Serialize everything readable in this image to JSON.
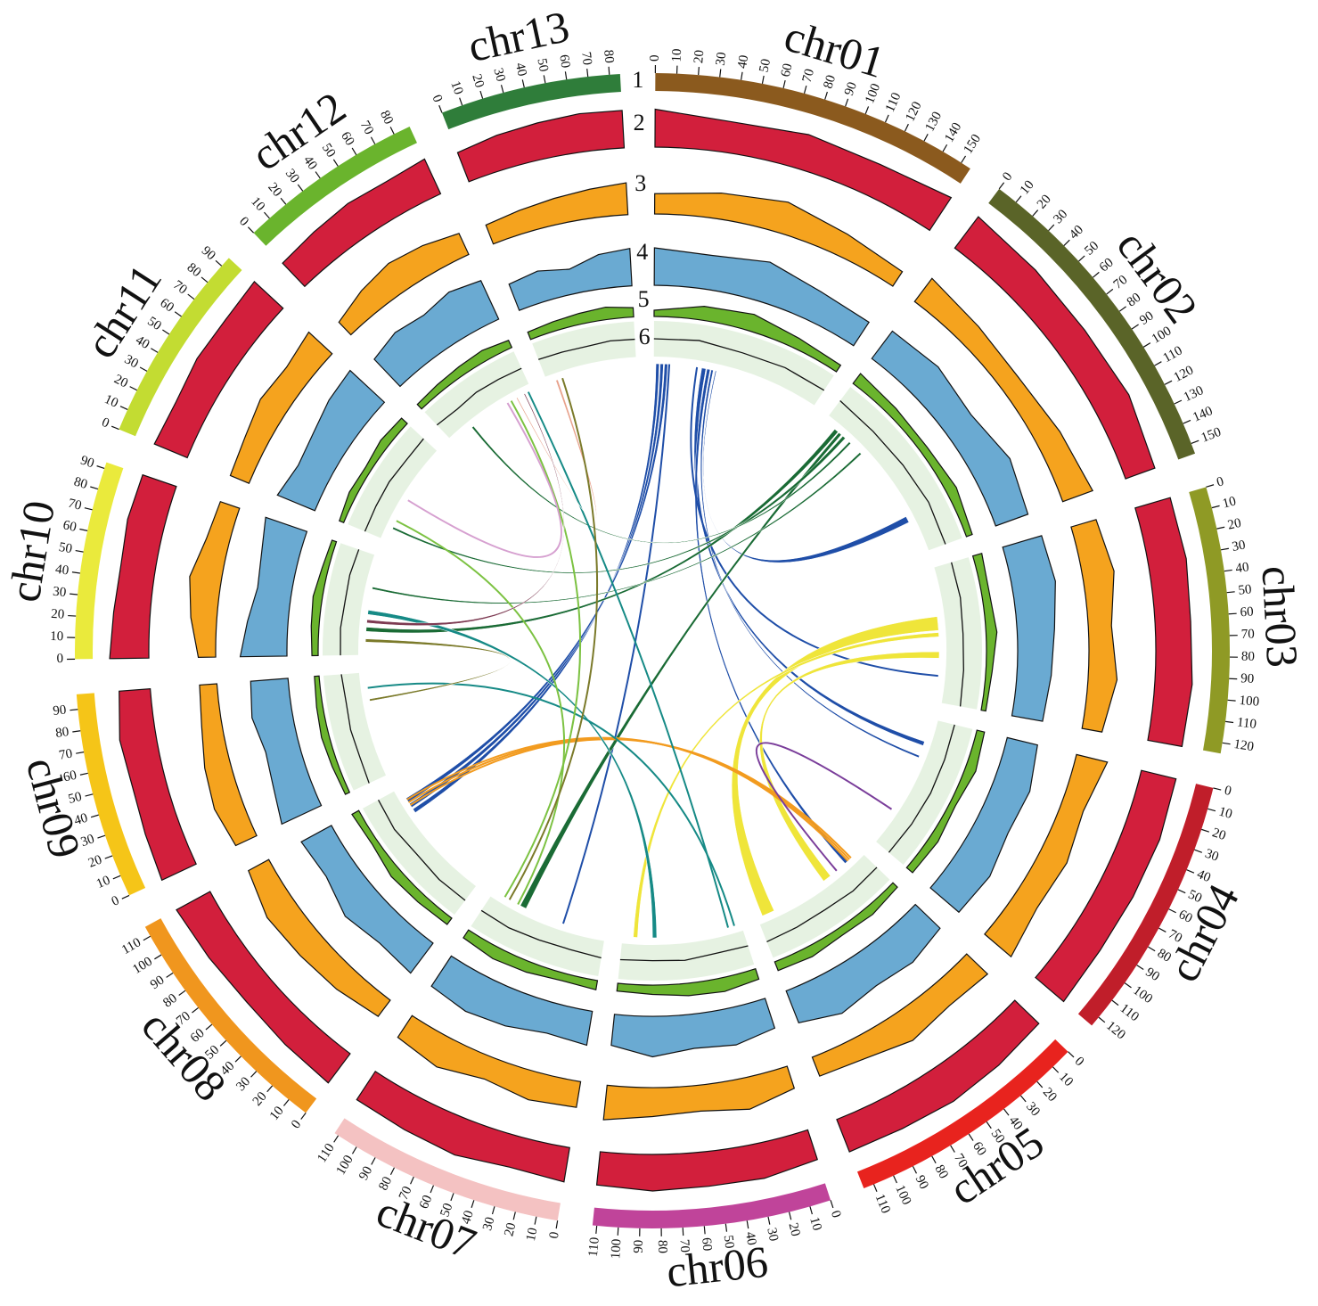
{
  "chart_data": {
    "type": "circos",
    "chromosomes": [
      {
        "name": "chr01",
        "color": "#8b5a1e",
        "length": 155,
        "ticks": [
          0,
          10,
          20,
          30,
          40,
          50,
          60,
          70,
          80,
          90,
          100,
          110,
          120,
          130,
          140,
          150
        ]
      },
      {
        "name": "chr02",
        "color": "#5a6428",
        "length": 155,
        "ticks": [
          0,
          10,
          20,
          30,
          40,
          50,
          60,
          70,
          80,
          90,
          100,
          110,
          120,
          130,
          140,
          150
        ]
      },
      {
        "name": "chr03",
        "color": "#8f9a25",
        "length": 125,
        "ticks": [
          0,
          10,
          20,
          30,
          40,
          50,
          60,
          70,
          80,
          90,
          100,
          110,
          120
        ]
      },
      {
        "name": "chr04",
        "color": "#c01e2a",
        "length": 125,
        "ticks": [
          0,
          10,
          20,
          30,
          40,
          50,
          60,
          70,
          80,
          90,
          100,
          110,
          120
        ]
      },
      {
        "name": "chr05",
        "color": "#e8231e",
        "length": 115,
        "ticks": [
          0,
          10,
          20,
          30,
          40,
          50,
          60,
          70,
          80,
          90,
          100,
          110
        ]
      },
      {
        "name": "chr06",
        "color": "#c0449a",
        "length": 112,
        "ticks": [
          0,
          10,
          20,
          30,
          40,
          50,
          60,
          70,
          80,
          90,
          100,
          110
        ]
      },
      {
        "name": "chr07",
        "color": "#f4c2c2",
        "length": 112,
        "ticks": [
          0,
          10,
          20,
          30,
          40,
          50,
          60,
          70,
          80,
          90,
          100,
          110
        ]
      },
      {
        "name": "chr08",
        "color": "#f0961e",
        "length": 115,
        "ticks": [
          0,
          10,
          20,
          30,
          40,
          50,
          60,
          70,
          80,
          90,
          100,
          110
        ]
      },
      {
        "name": "chr09",
        "color": "#f5c518",
        "length": 97,
        "ticks": [
          0,
          10,
          20,
          30,
          40,
          50,
          60,
          70,
          80,
          90
        ]
      },
      {
        "name": "chr10",
        "color": "#eaea3c",
        "length": 93,
        "ticks": [
          0,
          10,
          20,
          30,
          40,
          50,
          60,
          70,
          80,
          90
        ]
      },
      {
        "name": "chr11",
        "color": "#c3dc32",
        "length": 95,
        "ticks": [
          0,
          10,
          20,
          30,
          40,
          50,
          60,
          70,
          80,
          90
        ]
      },
      {
        "name": "chr12",
        "color": "#6ab42d",
        "length": 88,
        "ticks": [
          0,
          10,
          20,
          30,
          40,
          50,
          60,
          70,
          80
        ]
      },
      {
        "name": "chr13",
        "color": "#2f7d3a",
        "length": 85,
        "ticks": [
          0,
          10,
          20,
          30,
          40,
          50,
          60,
          70,
          80
        ]
      }
    ],
    "track_labels": [
      "1",
      "2",
      "3",
      "4",
      "5",
      "6"
    ],
    "tracks": [
      {
        "style": "area",
        "color": "#d21f3c",
        "ylim": [
          0,
          100
        ],
        "values": [
          [
            85,
            70,
            80,
            75,
            88
          ],
          [
            88,
            82,
            78,
            84,
            70
          ],
          [
            82,
            86,
            80,
            84,
            78
          ],
          [
            80,
            85,
            82,
            79,
            83
          ],
          [
            75,
            82,
            86,
            80,
            78
          ],
          [
            70,
            80,
            78,
            82,
            75
          ],
          [
            78,
            72,
            85,
            80,
            76
          ],
          [
            82,
            78,
            74,
            80,
            86
          ],
          [
            85,
            80,
            76,
            82,
            70
          ],
          [
            88,
            82,
            78,
            84,
            80
          ],
          [
            80,
            76,
            84,
            82,
            88
          ],
          [
            72,
            78,
            84,
            80,
            86
          ],
          [
            70,
            78,
            82,
            86,
            84
          ]
        ]
      },
      {
        "style": "area",
        "color": "#f5a31e",
        "ylim": [
          0,
          100
        ],
        "values": [
          [
            35,
            45,
            55,
            40,
            30
          ],
          [
            50,
            40,
            35,
            45,
            55
          ],
          [
            45,
            55,
            40,
            50,
            35
          ],
          [
            55,
            40,
            50,
            45,
            60
          ],
          [
            50,
            45,
            55,
            40,
            35
          ],
          [
            40,
            55,
            45,
            50,
            60
          ],
          [
            45,
            50,
            40,
            55,
            45
          ],
          [
            35,
            45,
            50,
            55,
            40
          ],
          [
            40,
            50,
            45,
            35,
            30
          ],
          [
            30,
            45,
            55,
            40,
            35
          ],
          [
            35,
            40,
            50,
            45,
            55
          ],
          [
            30,
            45,
            55,
            50,
            40
          ],
          [
            35,
            40,
            45,
            50,
            55
          ]
        ]
      },
      {
        "style": "area",
        "color": "#6aaad2",
        "ylim": [
          0,
          100
        ],
        "values": [
          [
            60,
            55,
            65,
            50,
            45
          ],
          [
            55,
            60,
            50,
            65,
            55
          ],
          [
            65,
            70,
            60,
            55,
            50
          ],
          [
            50,
            60,
            55,
            65,
            60
          ],
          [
            55,
            65,
            60,
            70,
            55
          ],
          [
            50,
            60,
            55,
            65,
            50
          ],
          [
            55,
            50,
            60,
            65,
            58
          ],
          [
            60,
            55,
            65,
            50,
            55
          ],
          [
            70,
            60,
            55,
            65,
            60
          ],
          [
            75,
            65,
            55,
            60,
            70
          ],
          [
            65,
            55,
            60,
            70,
            75
          ],
          [
            60,
            70,
            65,
            75,
            68
          ],
          [
            45,
            50,
            40,
            55,
            60
          ]
        ]
      },
      {
        "style": "area",
        "color": "#6ab42d",
        "ylim": [
          0,
          100
        ],
        "values": [
          [
            20,
            45,
            55,
            35,
            25
          ],
          [
            40,
            30,
            25,
            35,
            20
          ],
          [
            30,
            25,
            35,
            20,
            15
          ],
          [
            25,
            35,
            20,
            30,
            25
          ],
          [
            20,
            30,
            25,
            35,
            30
          ],
          [
            35,
            45,
            40,
            30,
            25
          ],
          [
            30,
            25,
            35,
            40,
            30
          ],
          [
            25,
            30,
            35,
            20,
            25
          ],
          [
            15,
            20,
            25,
            20,
            15
          ],
          [
            20,
            25,
            30,
            20,
            15
          ],
          [
            15,
            25,
            20,
            30,
            25
          ],
          [
            20,
            25,
            30,
            35,
            25
          ],
          [
            25,
            30,
            35,
            40,
            30
          ]
        ]
      },
      {
        "style": "line",
        "color": "#111111",
        "background": "#e6f2e2",
        "ylim": [
          0,
          100
        ],
        "values": [
          [
            50,
            55,
            48,
            52,
            50
          ],
          [
            52,
            48,
            50,
            55,
            50
          ],
          [
            50,
            52,
            48,
            50,
            53
          ],
          [
            48,
            50,
            52,
            50,
            47
          ],
          [
            50,
            53,
            48,
            50,
            52
          ],
          [
            45,
            42,
            48,
            44,
            46
          ],
          [
            48,
            44,
            46,
            50,
            47
          ],
          [
            50,
            52,
            48,
            55,
            50
          ],
          [
            52,
            48,
            50,
            46,
            50
          ],
          [
            50,
            52,
            48,
            50,
            46
          ],
          [
            48,
            50,
            52,
            48,
            50
          ],
          [
            50,
            46,
            52,
            50,
            48
          ],
          [
            52,
            50,
            48,
            52,
            50
          ]
        ]
      }
    ],
    "links": [
      {
        "source": {
          "chr": "chr01",
          "start": 2,
          "end": 5
        },
        "target": {
          "chr": "chr08",
          "start": 88,
          "end": 92
        },
        "color": "#1f4ea8"
      },
      {
        "source": {
          "chr": "chr01",
          "start": 6,
          "end": 9
        },
        "target": {
          "chr": "chr08",
          "start": 94,
          "end": 98
        },
        "color": "#1f4ea8"
      },
      {
        "source": {
          "chr": "chr01",
          "start": 10,
          "end": 13
        },
        "target": {
          "chr": "chr08",
          "start": 100,
          "end": 104
        },
        "color": "#1f4ea8"
      },
      {
        "source": {
          "chr": "chr01",
          "start": 14,
          "end": 15
        },
        "target": {
          "chr": "chr07",
          "start": 40,
          "end": 41
        },
        "color": "#1f4ea8"
      },
      {
        "source": {
          "chr": "chr01",
          "start": 45,
          "end": 49
        },
        "target": {
          "chr": "chr04",
          "start": 22,
          "end": 26
        },
        "color": "#1f4ea8"
      },
      {
        "source": {
          "chr": "chr01",
          "start": 50,
          "end": 53
        },
        "target": {
          "chr": "chr05",
          "start": 15,
          "end": 18
        },
        "color": "#1f4ea8"
      },
      {
        "source": {
          "chr": "chr01",
          "start": 54,
          "end": 56
        },
        "target": {
          "chr": "chr04",
          "start": 36,
          "end": 38
        },
        "color": "#1f4ea8"
      },
      {
        "source": {
          "chr": "chr01",
          "start": 40,
          "end": 41
        },
        "target": {
          "chr": "chr03",
          "start": 100,
          "end": 101
        },
        "color": "#1f4ea8"
      },
      {
        "source": {
          "chr": "chr01",
          "start": 58,
          "end": 59
        },
        "target": {
          "chr": "chr02",
          "start": 118,
          "end": 124
        },
        "color": "#1f4ea8"
      },
      {
        "source": {
          "chr": "chr02",
          "start": 12,
          "end": 16
        },
        "target": {
          "chr": "chr10",
          "start": 22,
          "end": 26
        },
        "color": "#1a6b35"
      },
      {
        "source": {
          "chr": "chr02",
          "start": 17,
          "end": 20
        },
        "target": {
          "chr": "chr07",
          "start": 78,
          "end": 84
        },
        "color": "#1a6b35"
      },
      {
        "source": {
          "chr": "chr02",
          "start": 22,
          "end": 25
        },
        "target": {
          "chr": "chr11",
          "start": 12,
          "end": 14
        },
        "color": "#1a6b35"
      },
      {
        "source": {
          "chr": "chr02",
          "start": 30,
          "end": 32
        },
        "target": {
          "chr": "chr12",
          "start": 22,
          "end": 24
        },
        "color": "#1a6b35"
      },
      {
        "source": {
          "chr": "chr02",
          "start": 44,
          "end": 46
        },
        "target": {
          "chr": "chr10",
          "start": 62,
          "end": 64
        },
        "color": "#1a6b35"
      },
      {
        "source": {
          "chr": "chr03",
          "start": 45,
          "end": 58
        },
        "target": {
          "chr": "chr05",
          "start": 98,
          "end": 110
        },
        "color": "#efe53a"
      },
      {
        "source": {
          "chr": "chr03",
          "start": 60,
          "end": 64
        },
        "target": {
          "chr": "chr06",
          "start": 98,
          "end": 102
        },
        "color": "#efe53a"
      },
      {
        "source": {
          "chr": "chr03",
          "start": 78,
          "end": 84
        },
        "target": {
          "chr": "chr05",
          "start": 36,
          "end": 44
        },
        "color": "#efe53a"
      },
      {
        "source": {
          "chr": "chr08",
          "start": 96,
          "end": 97
        },
        "target": {
          "chr": "chr05",
          "start": 10,
          "end": 11
        },
        "color": "#f29b1f"
      },
      {
        "source": {
          "chr": "chr08",
          "start": 99,
          "end": 100
        },
        "target": {
          "chr": "chr05",
          "start": 12,
          "end": 13
        },
        "color": "#f29b1f"
      },
      {
        "source": {
          "chr": "chr08",
          "start": 102,
          "end": 103
        },
        "target": {
          "chr": "chr05",
          "start": 14,
          "end": 15
        },
        "color": "#f29b1f"
      },
      {
        "source": {
          "chr": "chr04",
          "start": 92,
          "end": 93
        },
        "target": {
          "chr": "chr05",
          "start": 28,
          "end": 29
        },
        "color": "#7a3d9a"
      },
      {
        "source": {
          "chr": "chr10",
          "start": 38,
          "end": 42
        },
        "target": {
          "chr": "chr06",
          "start": 80,
          "end": 84
        },
        "color": "#168a86"
      },
      {
        "source": {
          "chr": "chr09",
          "start": 82,
          "end": 83
        },
        "target": {
          "chr": "chr06",
          "start": 6,
          "end": 7
        },
        "color": "#168a86"
      },
      {
        "source": {
          "chr": "chr12",
          "start": 84,
          "end": 85
        },
        "target": {
          "chr": "chr06",
          "start": 12,
          "end": 13
        },
        "color": "#168a86"
      },
      {
        "source": {
          "chr": "chr12",
          "start": 66,
          "end": 67
        },
        "target": {
          "chr": "chr07",
          "start": 100,
          "end": 101
        },
        "color": "#7cc242"
      },
      {
        "source": {
          "chr": "chr11",
          "start": 20,
          "end": 21
        },
        "target": {
          "chr": "chr07",
          "start": 86,
          "end": 87
        },
        "color": "#7cc242"
      },
      {
        "source": {
          "chr": "chr13",
          "start": 8,
          "end": 10
        },
        "target": {
          "chr": "chr12",
          "start": 72,
          "end": 73
        },
        "color": "#e8a28c"
      },
      {
        "source": {
          "chr": "chr11",
          "start": 42,
          "end": 43
        },
        "target": {
          "chr": "chr12",
          "start": 62,
          "end": 63
        },
        "color": "#d6a0d0"
      },
      {
        "source": {
          "chr": "chr10",
          "start": 30,
          "end": 33
        },
        "target": {
          "chr": "chr12",
          "start": 80,
          "end": 81
        },
        "color": "#7d3a52"
      },
      {
        "source": {
          "chr": "chr10",
          "start": 12,
          "end": 15
        },
        "target": {
          "chr": "chr09",
          "start": 70,
          "end": 72
        },
        "color": "#7b7a2a"
      },
      {
        "source": {
          "chr": "chr13",
          "start": 14,
          "end": 15
        },
        "target": {
          "chr": "chr07",
          "start": 95,
          "end": 96
        },
        "color": "#7b7a2a"
      }
    ]
  }
}
